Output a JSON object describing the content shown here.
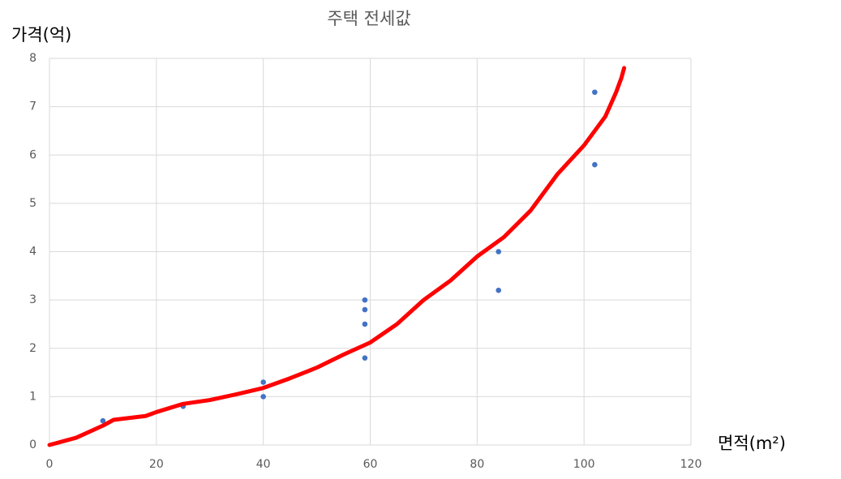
{
  "chart_data": {
    "type": "scatter",
    "title": "주택 전세값",
    "y_label": "가격(억)",
    "x_label": "면적(m²)",
    "series": [
      {
        "type": "scatter",
        "color": "#4472c4",
        "x": [
          10,
          25,
          40,
          40,
          59,
          59,
          59,
          59,
          84,
          84,
          102,
          102
        ],
        "values": [
          0.5,
          0.8,
          1.3,
          1.0,
          3.0,
          2.8,
          2.5,
          1.8,
          4.0,
          3.2,
          7.3,
          5.8
        ]
      },
      {
        "type": "line",
        "color": "#ff0000",
        "x": [
          0,
          5,
          10,
          12,
          18,
          20,
          25,
          30,
          35,
          40,
          45,
          50,
          55,
          60,
          65,
          70,
          75,
          80,
          85,
          90,
          95,
          100,
          104,
          106,
          107,
          107.5
        ],
        "values": [
          0,
          0.15,
          0.4,
          0.52,
          0.6,
          0.68,
          0.85,
          0.93,
          1.05,
          1.18,
          1.38,
          1.6,
          1.87,
          2.12,
          2.5,
          3.0,
          3.4,
          3.9,
          4.3,
          4.85,
          5.6,
          6.2,
          6.8,
          7.3,
          7.6,
          7.8
        ]
      }
    ],
    "xlim": [
      0,
      120
    ],
    "xticks": [
      0,
      20,
      40,
      60,
      80,
      100,
      120
    ],
    "ylim": [
      0,
      8
    ],
    "yticks": [
      0,
      1,
      2,
      3,
      4,
      5,
      6,
      7,
      8
    ],
    "grid": true
  }
}
